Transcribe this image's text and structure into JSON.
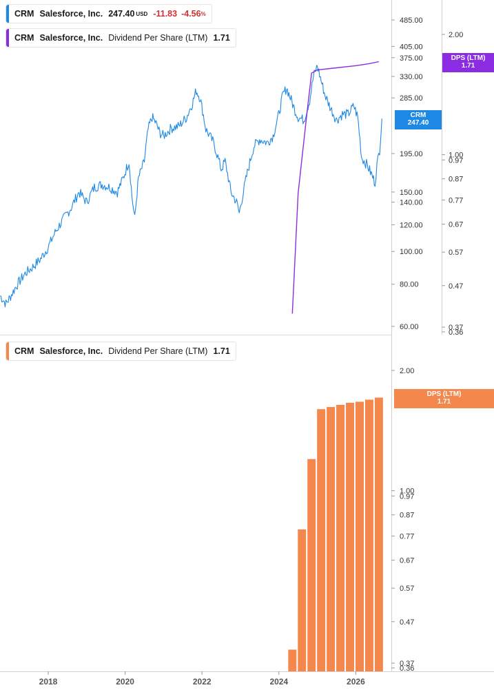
{
  "legends": {
    "price": {
      "ticker": "CRM",
      "name": "Salesforce, Inc.",
      "value": "247.40",
      "currency": "USD",
      "change": "-11.83",
      "change_pct": "-4.56",
      "pct_sign": "%",
      "color": "#1e88e5"
    },
    "dps_top": {
      "ticker": "CRM",
      "name": "Salesforce, Inc.",
      "series": "Dividend Per Share (LTM)",
      "value": "1.71",
      "color": "#8b2be2"
    },
    "dps_bottom": {
      "ticker": "CRM",
      "name": "Salesforce, Inc.",
      "series": "Dividend Per Share (LTM)",
      "value": "1.71",
      "color": "#f4874b"
    }
  },
  "tags": {
    "price": {
      "label": "CRM",
      "value": "247.40",
      "color": "#1e88e5"
    },
    "dps_top": {
      "label": "DPS (LTM)",
      "value": "1.71",
      "color": "#8b2be2"
    },
    "dps_bottom": {
      "label": "DPS (LTM)",
      "value": "1.71",
      "color": "#f4874b"
    }
  },
  "chart_data": [
    {
      "type": "line",
      "series": [
        {
          "name": "CRM",
          "color": "#1e88e5",
          "points": [
            [
              2016.75,
              74
            ],
            [
              2016.9,
              70
            ],
            [
              2017.0,
              73
            ],
            [
              2017.2,
              80
            ],
            [
              2017.4,
              86
            ],
            [
              2017.6,
              90
            ],
            [
              2017.8,
              95
            ],
            [
              2018.0,
              103
            ],
            [
              2018.2,
              115
            ],
            [
              2018.4,
              125
            ],
            [
              2018.6,
              135
            ],
            [
              2018.8,
              150
            ],
            [
              2019.0,
              140
            ],
            [
              2019.2,
              155
            ],
            [
              2019.4,
              158
            ],
            [
              2019.6,
              155
            ],
            [
              2019.8,
              150
            ],
            [
              2019.95,
              165
            ],
            [
              2020.1,
              185
            ],
            [
              2020.18,
              145
            ],
            [
              2020.25,
              125
            ],
            [
              2020.35,
              165
            ],
            [
              2020.5,
              185
            ],
            [
              2020.6,
              230
            ],
            [
              2020.7,
              250
            ],
            [
              2020.8,
              240
            ],
            [
              2020.9,
              225
            ],
            [
              2021.0,
              220
            ],
            [
              2021.2,
              232
            ],
            [
              2021.4,
              235
            ],
            [
              2021.6,
              250
            ],
            [
              2021.75,
              275
            ],
            [
              2021.85,
              300
            ],
            [
              2021.95,
              285
            ],
            [
              2022.1,
              230
            ],
            [
              2022.3,
              210
            ],
            [
              2022.5,
              175
            ],
            [
              2022.6,
              185
            ],
            [
              2022.75,
              150
            ],
            [
              2022.9,
              140
            ],
            [
              2022.97,
              130
            ],
            [
              2023.1,
              155
            ],
            [
              2023.2,
              175
            ],
            [
              2023.35,
              205
            ],
            [
              2023.5,
              215
            ],
            [
              2023.7,
              210
            ],
            [
              2023.85,
              220
            ],
            [
              2024.0,
              255
            ],
            [
              2024.1,
              290
            ],
            [
              2024.2,
              305
            ],
            [
              2024.3,
              285
            ],
            [
              2024.4,
              265
            ],
            [
              2024.5,
              250
            ],
            [
              2024.65,
              245
            ],
            [
              2024.8,
              280
            ],
            [
              2024.9,
              330
            ],
            [
              2025.0,
              355
            ],
            [
              2025.1,
              320
            ],
            [
              2025.2,
              290
            ],
            [
              2025.35,
              265
            ],
            [
              2025.5,
              245
            ],
            [
              2025.65,
              255
            ],
            [
              2025.8,
              255
            ],
            [
              2025.95,
              270
            ],
            [
              2026.05,
              250
            ],
            [
              2026.15,
              190
            ],
            [
              2026.3,
              180
            ],
            [
              2026.4,
              170
            ],
            [
              2026.5,
              160
            ],
            [
              2026.55,
              180
            ],
            [
              2026.62,
              200
            ],
            [
              2026.68,
              247.4
            ]
          ]
        },
        {
          "name": "Dividend Per Share (LTM)",
          "color": "#8b2be2",
          "points": [
            [
              2024.35,
              0.4
            ],
            [
              2024.5,
              0.8
            ],
            [
              2024.7,
              1.2
            ],
            [
              2024.85,
              1.6
            ],
            [
              2025.0,
              1.63
            ],
            [
              2025.5,
              1.65
            ],
            [
              2026.0,
              1.67
            ],
            [
              2026.35,
              1.69
            ],
            [
              2026.6,
              1.71
            ]
          ]
        }
      ],
      "x_ticks": [
        "2018",
        "2020",
        "2022",
        "2024",
        "2026"
      ],
      "y_ticks_price": [
        "485.00",
        "405.00",
        "375.00",
        "330.00",
        "285.00",
        "195.00",
        "150.00",
        "140.00",
        "120.00",
        "100.00",
        "80.00",
        "60.00"
      ],
      "y_ticks_dps": [
        "2.00",
        "1.00",
        "0.97",
        "0.87",
        "0.77",
        "0.67",
        "0.57",
        "0.47",
        "0.37",
        "0.36"
      ],
      "y_scale": "log"
    },
    {
      "type": "bar",
      "series": [
        {
          "name": "Dividend Per Share (LTM)",
          "color": "#f4874b",
          "bars": [
            [
              2024.35,
              0.4
            ],
            [
              2024.6,
              0.8
            ],
            [
              2024.85,
              1.2
            ],
            [
              2025.1,
              1.6
            ],
            [
              2025.35,
              1.62
            ],
            [
              2025.6,
              1.64
            ],
            [
              2025.85,
              1.66
            ],
            [
              2026.1,
              1.67
            ],
            [
              2026.35,
              1.69
            ],
            [
              2026.6,
              1.71
            ]
          ]
        }
      ],
      "x_ticks": [
        "2018",
        "2020",
        "2022",
        "2024",
        "2026"
      ],
      "y_ticks": [
        "2.00",
        "1.00",
        "0.97",
        "0.87",
        "0.77",
        "0.67",
        "0.57",
        "0.47",
        "0.37",
        "0.36"
      ],
      "y_scale": "log"
    }
  ]
}
